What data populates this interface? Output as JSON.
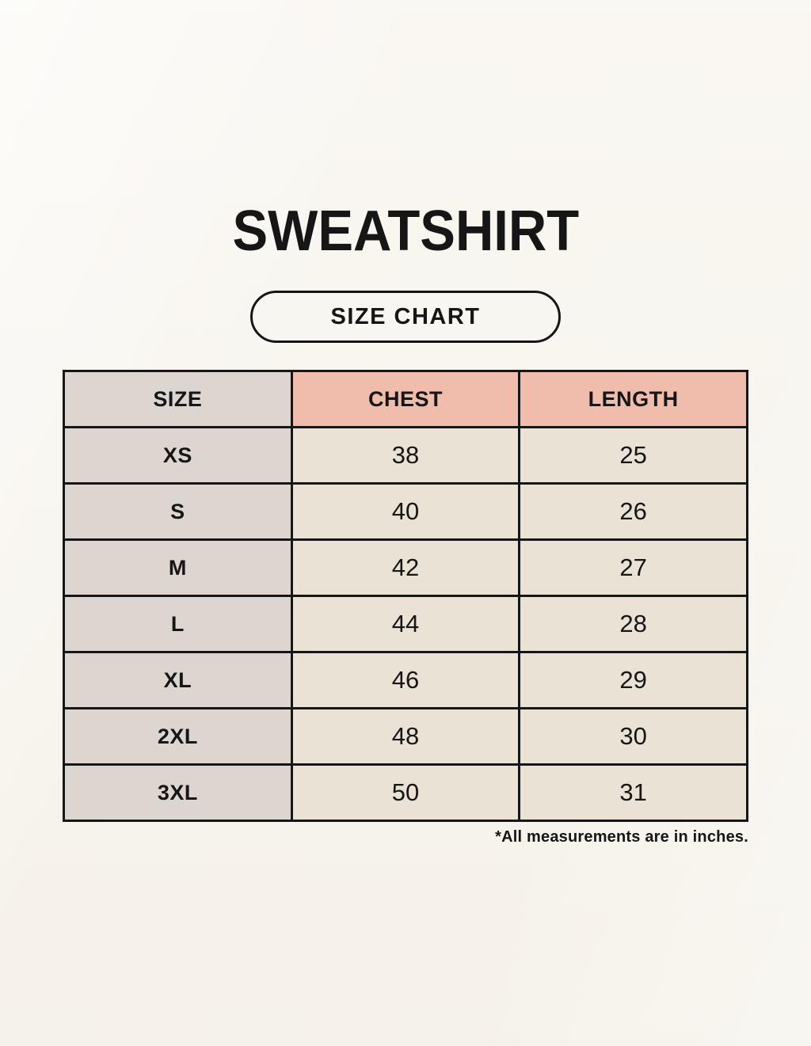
{
  "header": {
    "title": "SWEATSHIRT",
    "badge_label": "SIZE CHART"
  },
  "chart_data": {
    "type": "table",
    "title": "SWEATSHIRT SIZE CHART",
    "columns": [
      "SIZE",
      "CHEST",
      "LENGTH"
    ],
    "rows": [
      {
        "size": "XS",
        "chest": "38",
        "length": "25"
      },
      {
        "size": "S",
        "chest": "40",
        "length": "26"
      },
      {
        "size": "M",
        "chest": "42",
        "length": "27"
      },
      {
        "size": "L",
        "chest": "44",
        "length": "28"
      },
      {
        "size": "XL",
        "chest": "46",
        "length": "29"
      },
      {
        "size": "2XL",
        "chest": "48",
        "length": "30"
      },
      {
        "size": "3XL",
        "chest": "50",
        "length": "31"
      }
    ],
    "units": "inches"
  },
  "footnote": "*All measurements are in inches.",
  "colors": {
    "background": "#f8f5ee",
    "header_accent": "#f0bcab",
    "size_column": "#dcd5d0",
    "value_cell": "#e9e2d5",
    "border": "#161616",
    "text": "#161616"
  }
}
